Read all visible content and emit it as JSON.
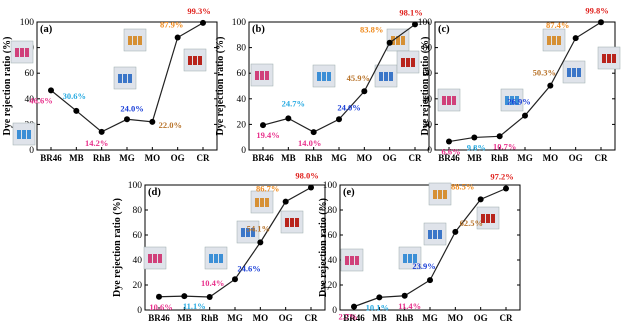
{
  "colors": {
    "BR46": "#e8328c",
    "MB": "#29abe2",
    "RhB": "#e8328c",
    "MG": "#1a3fd8",
    "MO": "#b8732a",
    "OG": "#f08a1c",
    "CR": "#e0201c",
    "line": "#222222"
  },
  "chart_data": [
    {
      "type": "line",
      "panel_label": "(a)",
      "ylabel": "Dye rejection ratio (%)",
      "categories": [
        "BR46",
        "MB",
        "RhB",
        "MG",
        "MO",
        "OG",
        "CR"
      ],
      "values": [
        46.6,
        30.6,
        14.2,
        24.0,
        22.0,
        87.9,
        99.3
      ],
      "labels": [
        "46.6%",
        "30.6%",
        "14.2%",
        "24.0%",
        "22.0%",
        "87.9%",
        "99.3%"
      ],
      "yticks": [
        "0",
        "20",
        "40",
        "60",
        "80",
        "100"
      ],
      "ylim": [
        0,
        100
      ]
    },
    {
      "type": "line",
      "panel_label": "(b)",
      "ylabel": "Dye rejection ratio (%)",
      "categories": [
        "BR46",
        "MB",
        "RhB",
        "MG",
        "MO",
        "OG",
        "CR"
      ],
      "values": [
        19.4,
        24.7,
        14.0,
        24.0,
        45.9,
        83.8,
        98.1
      ],
      "labels": [
        "19.4%",
        "24.7%",
        "14.0%",
        "24.0%",
        "45.9%",
        "83.8%",
        "98.1%"
      ],
      "yticks": [
        "0",
        "20",
        "40",
        "60",
        "80",
        "100"
      ],
      "ylim": [
        0,
        100
      ]
    },
    {
      "type": "line",
      "panel_label": "(c)",
      "ylabel": "Dye rejection ratio (%)",
      "categories": [
        "BR46",
        "MB",
        "RhB",
        "MG",
        "MO",
        "OG",
        "CR"
      ],
      "values": [
        6.6,
        9.8,
        10.7,
        26.9,
        50.3,
        87.4,
        99.8
      ],
      "labels": [
        "6.6%",
        "9.8%",
        "10.7%",
        "26.9%",
        "50.3%",
        "87.4%",
        "99.8%"
      ],
      "yticks": [
        "0",
        "20",
        "40",
        "60",
        "80",
        "100"
      ],
      "ylim": [
        0,
        100
      ]
    },
    {
      "type": "line",
      "panel_label": "(d)",
      "ylabel": "Dye rejection ratio (%)",
      "categories": [
        "BR46",
        "MB",
        "RhB",
        "MG",
        "MO",
        "OG",
        "CR"
      ],
      "values": [
        10.6,
        11.1,
        10.4,
        24.6,
        54.1,
        86.7,
        98.0
      ],
      "labels": [
        "10.6%",
        "11.1%",
        "10.4%",
        "24.6%",
        "54.1%",
        "86.7%",
        "98.0%"
      ],
      "yticks": [
        "0",
        "20",
        "40",
        "60",
        "80",
        "100"
      ],
      "ylim": [
        0,
        100
      ]
    },
    {
      "type": "line",
      "panel_label": "(e)",
      "ylabel": "Dye rejection ratio (%)",
      "categories": [
        "BR46",
        "MB",
        "RhB",
        "MG",
        "MO",
        "OG",
        "CR"
      ],
      "values": [
        2.7,
        10.1,
        11.4,
        23.9,
        62.5,
        88.5,
        97.2
      ],
      "labels": [
        "2.7%",
        "10.1%",
        "11.4%",
        "23.9%",
        "62.5%",
        "88.5%",
        "97.2%"
      ],
      "yticks": [
        "0",
        "20",
        "40",
        "60",
        "80",
        "100"
      ],
      "ylim": [
        0,
        100
      ]
    }
  ]
}
